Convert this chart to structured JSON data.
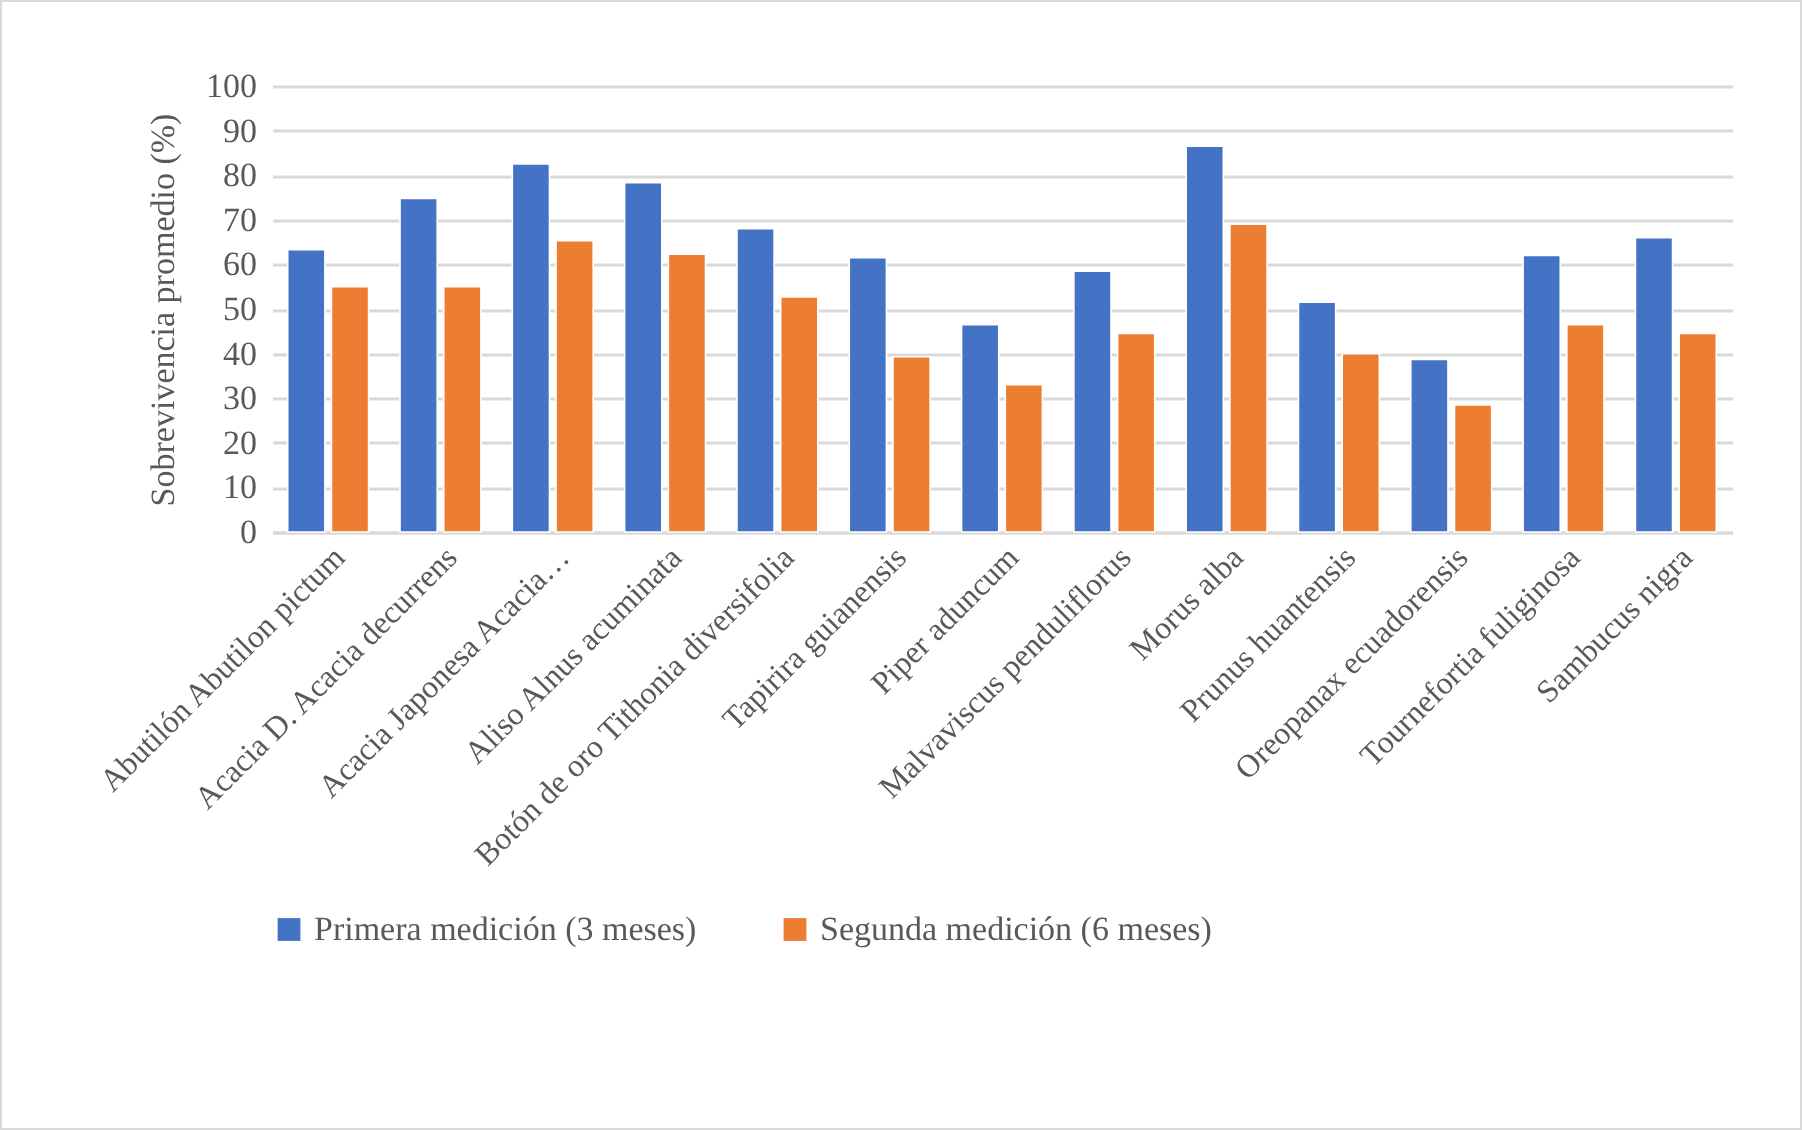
{
  "chart_data": {
    "type": "bar",
    "ylabel": "Sobrevivencia promedio (%)",
    "categories": [
      "Abutilón Abutilon pictum",
      "Acacia D. Acacia decurrens",
      "Acacia Japonesa Acacia…",
      "Aliso Alnus acuminata",
      "Botón de oro Tithonia diversifolia",
      "Tapirira guianensis",
      "Piper aduncum",
      "Malvaviscus penduliflorus",
      "Morus alba",
      "Prunus huantensis",
      "Oreopanax ecuadorensis",
      "Tournefortia fuliginosa",
      "Sambucus nigra"
    ],
    "series": [
      {
        "name": "Primera medición (3 meses)",
        "color": "#4472c4",
        "values": [
          63.3,
          74.8,
          82.5,
          78.3,
          68,
          61.5,
          46.5,
          58.5,
          86.5,
          51.5,
          38.7,
          62,
          66
        ]
      },
      {
        "name": "Segunda medición (6 meses)",
        "color": "#ed7d31",
        "values": [
          55,
          55,
          65.3,
          62.3,
          52.7,
          39.3,
          33,
          44.5,
          69,
          40,
          28.5,
          46.5,
          44.5
        ]
      }
    ],
    "ylim": [
      0,
      100
    ],
    "yticks": [
      0,
      10,
      20,
      30,
      40,
      50,
      60,
      70,
      80,
      90,
      100
    ],
    "grid": "y",
    "legend": "bottom"
  }
}
